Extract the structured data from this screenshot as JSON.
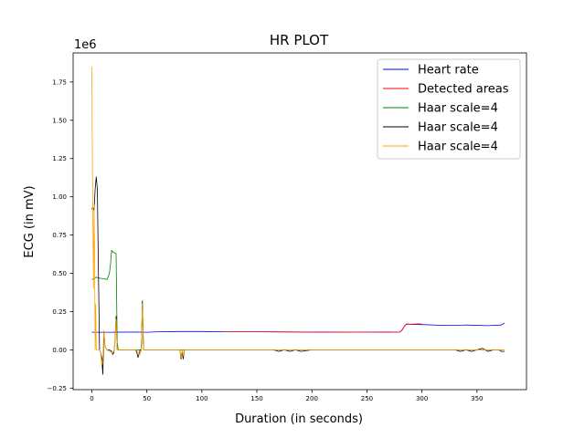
{
  "chart_data": {
    "type": "line",
    "title": "HR PLOT",
    "xlabel": "Duration (in seconds)",
    "ylabel": "ECG (in mV)",
    "y_offset_label": "1e6",
    "xlim": [
      -17,
      395
    ],
    "ylim": [
      -0.26,
      1.94
    ],
    "x_ticks": [
      0,
      50,
      100,
      150,
      200,
      250,
      300,
      350
    ],
    "y_ticks": [
      -0.25,
      0.0,
      0.25,
      0.5,
      0.75,
      1.0,
      1.25,
      1.5,
      1.75
    ],
    "y_tick_labels": [
      "−0.25",
      "0.00",
      "0.25",
      "0.50",
      "0.75",
      "1.00",
      "1.25",
      "1.50",
      "1.75"
    ],
    "grid": false,
    "legend_position": "top-right",
    "series": [
      {
        "name": "Heart rate",
        "color": "#0000ff",
        "x": [
          0,
          20,
          40,
          50,
          60,
          80,
          100,
          120,
          150,
          200,
          250,
          280,
          282,
          284,
          286,
          290,
          300,
          320,
          340,
          360,
          372,
          375
        ],
        "y": [
          0.115,
          0.115,
          0.116,
          0.115,
          0.118,
          0.12,
          0.12,
          0.118,
          0.118,
          0.116,
          0.116,
          0.117,
          0.13,
          0.155,
          0.168,
          0.166,
          0.165,
          0.16,
          0.162,
          0.158,
          0.162,
          0.175
        ]
      },
      {
        "name": "Detected areas",
        "color": "#ff0000",
        "x": [
          120,
          150,
          180,
          210,
          240,
          270,
          280,
          282,
          284,
          286,
          290,
          296,
          300
        ],
        "y": [
          0.118,
          0.118,
          0.117,
          0.115,
          0.116,
          0.115,
          0.117,
          0.13,
          0.155,
          0.17,
          0.167,
          0.17,
          0.168
        ]
      },
      {
        "name": "Haar scale=4",
        "color": "#008000",
        "x": [
          0,
          2,
          4,
          6,
          10,
          14,
          16,
          17,
          18,
          19,
          20,
          22,
          23,
          24,
          26,
          28,
          30,
          40,
          45,
          46,
          47,
          48,
          50,
          100,
          200,
          300,
          375
        ],
        "y": [
          0.46,
          0.465,
          0.475,
          0.47,
          0.465,
          0.46,
          0.5,
          0.56,
          0.65,
          0.64,
          0.635,
          0.63,
          0.05,
          0.0,
          0.0,
          0.0,
          0.0,
          0.0,
          0.0,
          0.3,
          0.0,
          0.0,
          0.0,
          0.0,
          0.0,
          0.0,
          0.0
        ]
      },
      {
        "name": "Haar scale=4",
        "color": "#000000",
        "x": [
          0,
          1,
          2,
          3,
          4,
          5,
          6,
          7,
          8,
          9,
          10,
          11,
          12,
          14,
          16,
          18,
          19,
          20,
          21,
          22,
          23,
          24,
          26,
          30,
          40,
          41,
          42,
          44,
          45,
          46,
          47,
          48,
          50,
          80,
          81,
          82,
          83,
          84,
          90,
          100,
          165,
          170,
          175,
          180,
          185,
          190,
          200,
          250,
          300,
          330,
          335,
          340,
          345,
          350,
          355,
          360,
          365,
          370,
          372,
          375
        ],
        "y": [
          0.92,
          0.93,
          0.91,
          1.05,
          1.13,
          1.05,
          0.5,
          0.0,
          -0.02,
          -0.05,
          -0.16,
          0.12,
          0.02,
          0.0,
          0.0,
          -0.01,
          -0.03,
          -0.02,
          0.05,
          0.22,
          0.0,
          0.0,
          0.0,
          0.0,
          0.0,
          -0.02,
          -0.05,
          0.0,
          0.0,
          0.32,
          0.0,
          0.0,
          0.0,
          0.0,
          -0.06,
          -0.01,
          -0.06,
          0.0,
          0.0,
          0.0,
          0.0,
          -0.01,
          0.0,
          -0.01,
          0.0,
          -0.01,
          0.0,
          0.0,
          0.0,
          0.0,
          -0.01,
          0.0,
          -0.01,
          0.0,
          0.01,
          -0.01,
          0.0,
          0.0,
          -0.01,
          -0.01
        ]
      },
      {
        "name": "Haar scale=4",
        "color": "#ffa500",
        "x": [
          0,
          0.5,
          1,
          1.5,
          2,
          2.5,
          3,
          3.5,
          4,
          5,
          6,
          7,
          8,
          9,
          10,
          11,
          12,
          14,
          16,
          19,
          20,
          21,
          22,
          23,
          24,
          26,
          30,
          40,
          44,
          45,
          46,
          47,
          48,
          50,
          80,
          81,
          82,
          83,
          84,
          90,
          100,
          200,
          300,
          330,
          340,
          350,
          360,
          370,
          375
        ],
        "y": [
          1.85,
          1.2,
          0.8,
          0.4,
          0.95,
          0.6,
          0.0,
          0.3,
          0.0,
          0.0,
          0.0,
          0.0,
          -0.02,
          -0.1,
          -0.05,
          0.13,
          0.02,
          0.0,
          -0.01,
          -0.02,
          -0.01,
          0.05,
          0.2,
          0.0,
          0.0,
          0.0,
          0.0,
          0.0,
          -0.03,
          0.0,
          0.3,
          0.0,
          0.0,
          0.0,
          0.0,
          -0.05,
          0.0,
          -0.04,
          0.0,
          0.0,
          0.0,
          0.0,
          0.0,
          0.0,
          0.0,
          0.0,
          0.0,
          0.0,
          0.0
        ]
      }
    ]
  }
}
